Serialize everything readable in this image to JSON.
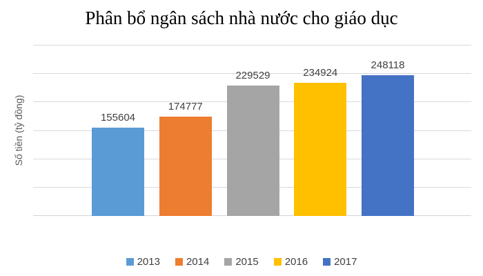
{
  "chart_data": {
    "type": "bar",
    "title": "Phân bổ ngân sách nhà nước cho giáo dục",
    "xlabel": "",
    "ylabel": "Số tiền (tỷ đồng)",
    "categories": [
      "2013",
      "2014",
      "2015",
      "2016",
      "2017"
    ],
    "values": [
      155604,
      174777,
      229529,
      234924,
      248118
    ],
    "bar_colors": [
      "#5B9BD5",
      "#ED7D31",
      "#A5A5A5",
      "#FFC000",
      "#4472C4"
    ],
    "ylim": [
      0,
      300000
    ],
    "gridline_step": 50000,
    "grid": true,
    "y_tick_labels_visible": false,
    "legend_position": "bottom",
    "data_labels_visible": true
  },
  "colors": {
    "gridline": "#D6D9DD",
    "title_text": "#000000",
    "data_label_text": "#404040",
    "axis_title_text": "#595959",
    "background": "#FFFFFF"
  }
}
